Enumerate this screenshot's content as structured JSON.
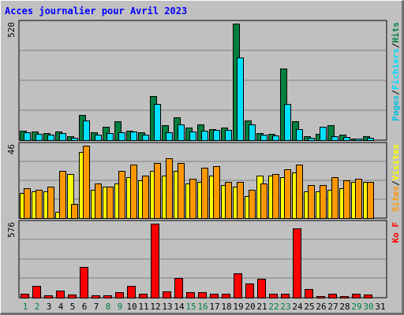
{
  "title": "Acces journalier pour Avril 2023",
  "colors": {
    "background": "#c0c0c0",
    "title": "#0000ff",
    "hits": "#008040",
    "files": "#00e0ff",
    "pages": "#00c0e0",
    "sites": "#ffff00",
    "visits": "#ff9800",
    "kbytes": "#ff0000",
    "weekend": "#008040",
    "weekday": "#000000"
  },
  "chart_data": [
    {
      "type": "bar",
      "title": "Acces journalier pour Avril 2023",
      "categories": [
        "1",
        "2",
        "3",
        "4",
        "5",
        "6",
        "7",
        "8",
        "9",
        "10",
        "11",
        "12",
        "13",
        "14",
        "15",
        "16",
        "17",
        "18",
        "19",
        "20",
        "21",
        "22",
        "23",
        "24",
        "25",
        "26",
        "27",
        "28",
        "29",
        "30",
        "31"
      ],
      "weekend_days": [
        "1",
        "2",
        "8",
        "9",
        "15",
        "16",
        "22",
        "23",
        "29",
        "30"
      ],
      "ymax_label": "520",
      "ylim": [
        0,
        520
      ],
      "legend": [
        "Pages",
        "/",
        "Fichiers",
        "/",
        "Hits"
      ],
      "series": [
        {
          "name": "Hits",
          "values": [
            43,
            38,
            30,
            38,
            18,
            112,
            35,
            61,
            85,
            43,
            35,
            198,
            68,
            102,
            57,
            72,
            48,
            55,
            520,
            88,
            33,
            28,
            320,
            85,
            18,
            28,
            68,
            23,
            3,
            18,
            0
          ]
        },
        {
          "name": "Fichiers",
          "values": [
            35,
            28,
            25,
            30,
            12,
            88,
            25,
            30,
            35,
            38,
            25,
            160,
            35,
            72,
            37,
            42,
            45,
            45,
            370,
            72,
            25,
            22,
            160,
            50,
            12,
            60,
            18,
            15,
            2,
            12,
            0
          ]
        }
      ]
    },
    {
      "type": "bar",
      "categories": [
        "1",
        "2",
        "3",
        "4",
        "5",
        "6",
        "7",
        "8",
        "9",
        "10",
        "11",
        "12",
        "13",
        "14",
        "15",
        "16",
        "17",
        "18",
        "19",
        "20",
        "21",
        "22",
        "23",
        "24",
        "25",
        "26",
        "27",
        "28",
        "29",
        "30",
        "31"
      ],
      "ymax_label": "46",
      "ylim": [
        0,
        46
      ],
      "legend": [
        "Sites",
        "/",
        "Visites"
      ],
      "series": [
        {
          "name": "Sites",
          "values": [
            16,
            17,
            17,
            4,
            28,
            42,
            18,
            20,
            22,
            26,
            24,
            30,
            27,
            30,
            22,
            23,
            27,
            21,
            20,
            14,
            27,
            27,
            26,
            29,
            17,
            17,
            18,
            19,
            23,
            23,
            0
          ]
        },
        {
          "name": "Visites",
          "values": [
            19,
            18,
            20,
            30,
            9,
            46,
            22,
            20,
            30,
            34,
            27,
            35,
            38,
            35,
            25,
            32,
            33,
            23,
            23,
            18,
            22,
            28,
            31,
            34,
            21,
            21,
            26,
            24,
            25,
            23,
            0
          ]
        }
      ]
    },
    {
      "type": "bar",
      "categories": [
        "1",
        "2",
        "3",
        "4",
        "5",
        "6",
        "7",
        "8",
        "9",
        "10",
        "11",
        "12",
        "13",
        "14",
        "15",
        "16",
        "17",
        "18",
        "19",
        "20",
        "21",
        "22",
        "23",
        "24",
        "25",
        "26",
        "27",
        "28",
        "29",
        "30",
        "31"
      ],
      "ymax_label": "576",
      "ylim": [
        0,
        576
      ],
      "legend": [
        "Ko F"
      ],
      "series": [
        {
          "name": "Ko F",
          "values": [
            30,
            90,
            20,
            55,
            26,
            238,
            20,
            20,
            45,
            90,
            28,
            576,
            46,
            152,
            40,
            40,
            30,
            30,
            190,
            110,
            148,
            28,
            28,
            540,
            70,
            15,
            30,
            15,
            30,
            25,
            0
          ]
        }
      ]
    }
  ]
}
